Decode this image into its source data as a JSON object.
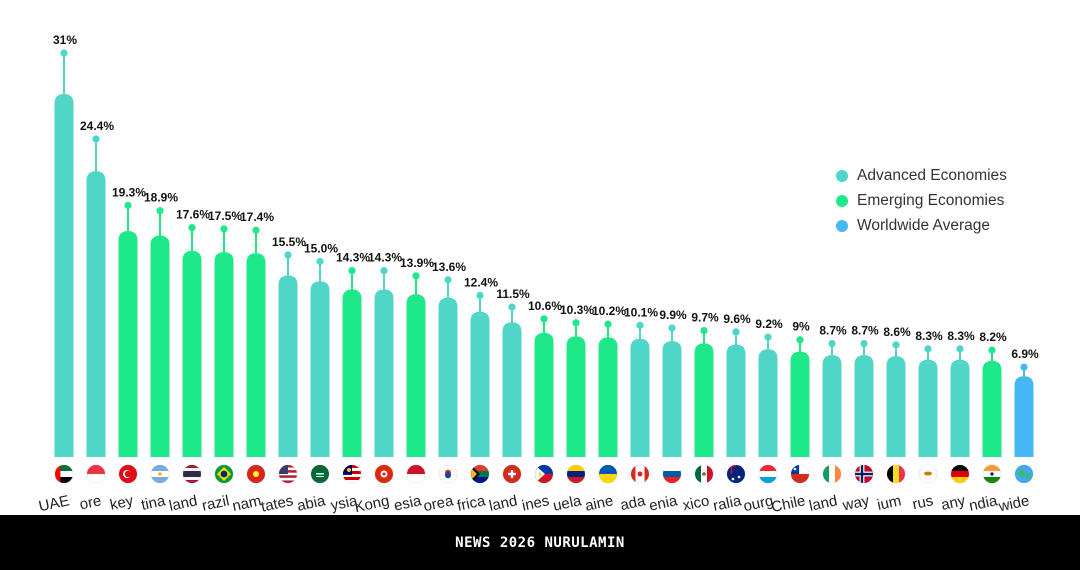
{
  "chart_data": {
    "type": "bar",
    "title": "",
    "xlabel": "",
    "ylabel": "",
    "ylim": [
      0,
      33
    ],
    "colors": {
      "advanced": "#4fd6c6",
      "emerging": "#1fe88a",
      "worldwide": "#44b8f2"
    },
    "categories": [
      {
        "label": "UAE",
        "value_label": "31%",
        "value": 31,
        "group": "advanced",
        "flag": "uae"
      },
      {
        "label": "ore",
        "value_label": "24.4%",
        "value": 24.4,
        "group": "advanced",
        "flag": "singapore"
      },
      {
        "label": "key",
        "value_label": "19.3%",
        "value": 19.3,
        "group": "emerging",
        "flag": "turkey"
      },
      {
        "label": "tina",
        "value_label": "18.9%",
        "value": 18.9,
        "group": "emerging",
        "flag": "argentina"
      },
      {
        "label": "land",
        "value_label": "17.6%",
        "value": 17.6,
        "group": "emerging",
        "flag": "thailand"
      },
      {
        "label": "razil",
        "value_label": "17.5%",
        "value": 17.5,
        "group": "emerging",
        "flag": "brazil"
      },
      {
        "label": "nam",
        "value_label": "17.4%",
        "value": 17.4,
        "group": "emerging",
        "flag": "vietnam"
      },
      {
        "label": "tates",
        "value_label": "15.5%",
        "value": 15.5,
        "group": "advanced",
        "flag": "usa"
      },
      {
        "label": "abia",
        "value_label": "15.0%",
        "value": 15.0,
        "group": "advanced",
        "flag": "saudi"
      },
      {
        "label": "ysia",
        "value_label": "14.3%",
        "value": 14.3,
        "group": "emerging",
        "flag": "malaysia"
      },
      {
        "label": "Kong",
        "value_label": "14.3%",
        "value": 14.3,
        "group": "advanced",
        "flag": "hongkong"
      },
      {
        "label": "esia",
        "value_label": "13.9%",
        "value": 13.9,
        "group": "emerging",
        "flag": "indonesia"
      },
      {
        "label": "orea",
        "value_label": "13.6%",
        "value": 13.6,
        "group": "advanced",
        "flag": "korea"
      },
      {
        "label": "frica",
        "value_label": "12.4%",
        "value": 12.4,
        "group": "advanced",
        "flag": "southafrica"
      },
      {
        "label": "land",
        "value_label": "11.5%",
        "value": 11.5,
        "group": "advanced",
        "flag": "switzerland"
      },
      {
        "label": "ines",
        "value_label": "10.6%",
        "value": 10.6,
        "group": "emerging",
        "flag": "philippines"
      },
      {
        "label": "uela",
        "value_label": "10.3%",
        "value": 10.3,
        "group": "emerging",
        "flag": "venezuela"
      },
      {
        "label": "aine",
        "value_label": "10.2%",
        "value": 10.2,
        "group": "emerging",
        "flag": "ukraine"
      },
      {
        "label": "ada",
        "value_label": "10.1%",
        "value": 10.1,
        "group": "advanced",
        "flag": "canada"
      },
      {
        "label": "enia",
        "value_label": "9.9%",
        "value": 9.9,
        "group": "advanced",
        "flag": "slovenia"
      },
      {
        "label": "xico",
        "value_label": "9.7%",
        "value": 9.7,
        "group": "emerging",
        "flag": "mexico"
      },
      {
        "label": "ralia",
        "value_label": "9.6%",
        "value": 9.6,
        "group": "advanced",
        "flag": "australia"
      },
      {
        "label": "ourg",
        "value_label": "9.2%",
        "value": 9.2,
        "group": "advanced",
        "flag": "luxembourg"
      },
      {
        "label": "Chile",
        "value_label": "9%",
        "value": 9.0,
        "group": "emerging",
        "flag": "chile"
      },
      {
        "label": "land",
        "value_label": "8.7%",
        "value": 8.7,
        "group": "advanced",
        "flag": "ireland"
      },
      {
        "label": "way",
        "value_label": "8.7%",
        "value": 8.7,
        "group": "advanced",
        "flag": "norway"
      },
      {
        "label": "ium",
        "value_label": "8.6%",
        "value": 8.6,
        "group": "advanced",
        "flag": "belgium"
      },
      {
        "label": "rus",
        "value_label": "8.3%",
        "value": 8.3,
        "group": "advanced",
        "flag": "cyprus"
      },
      {
        "label": "any",
        "value_label": "8.3%",
        "value": 8.3,
        "group": "advanced",
        "flag": "germany"
      },
      {
        "label": "ndia",
        "value_label": "8.2%",
        "value": 8.2,
        "group": "emerging",
        "flag": "india"
      },
      {
        "label": "wide",
        "value_label": "6.9%",
        "value": 6.9,
        "group": "worldwide",
        "flag": "globe"
      }
    ],
    "legend": {
      "position": "right",
      "items": [
        {
          "label": "Advanced Economies",
          "group": "advanced"
        },
        {
          "label": "Emerging Economies",
          "group": "emerging"
        },
        {
          "label": "Worldwide Average",
          "group": "worldwide"
        }
      ]
    }
  },
  "footer": {
    "text": "NEWS 2026 NURULAMIN"
  }
}
